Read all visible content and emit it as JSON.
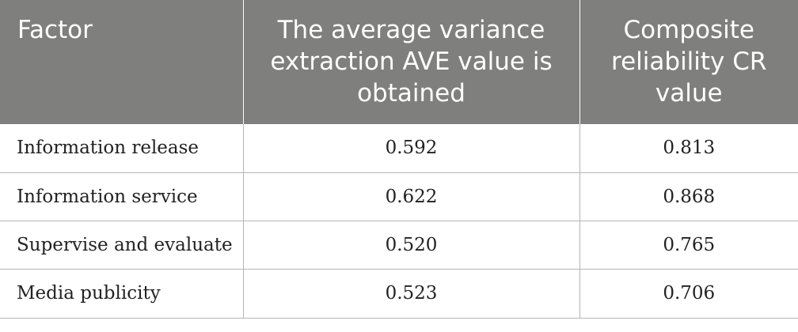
{
  "table": {
    "headers": [
      "Factor",
      "The average variance extraction AVE value is obtained",
      "Composite reliability CR value"
    ],
    "rows": [
      {
        "factor": "Information release",
        "ave": "0.592",
        "cr": "0.813"
      },
      {
        "factor": "Information service",
        "ave": "0.622",
        "cr": "0.868"
      },
      {
        "factor": "Supervise and evaluate",
        "ave": "0.520",
        "cr": "0.765"
      },
      {
        "factor": "Media publicity",
        "ave": "0.523",
        "cr": "0.706"
      }
    ]
  },
  "colors": {
    "header_bg": "#7f7f7e",
    "header_text": "#ffffff",
    "body_text": "#222222",
    "rule": "#b5b5b5"
  }
}
